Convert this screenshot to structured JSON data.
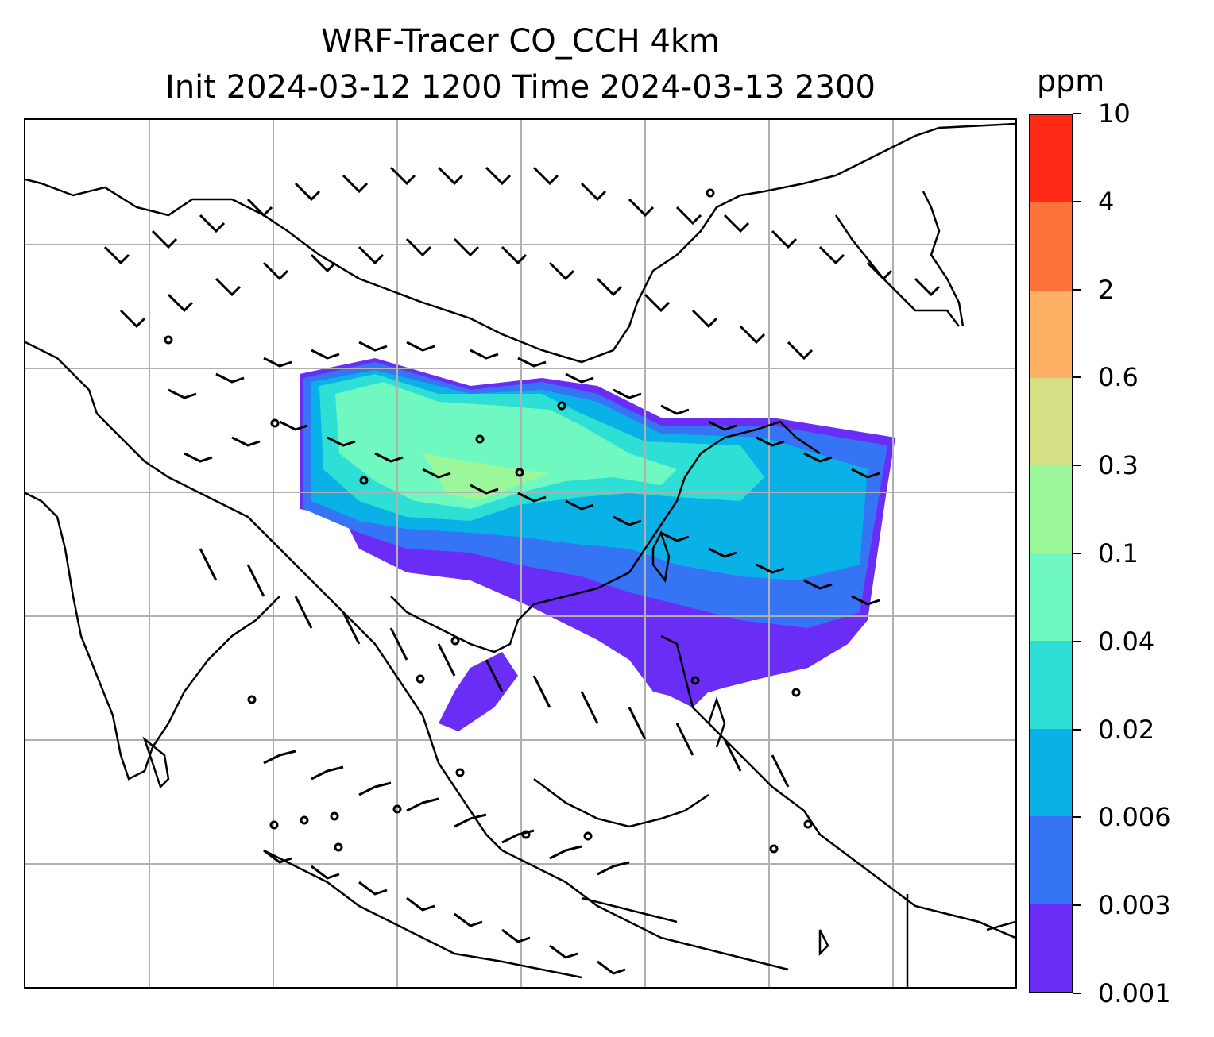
{
  "title": {
    "line1": "WRF-Tracer CO_CCH 4km",
    "line2": "Init 2024-03-12 1200 Time 2024-03-13 2300"
  },
  "colorbar": {
    "unit": "ppm",
    "levels": [
      "0.001",
      "0.003",
      "0.006",
      "0.02",
      "0.04",
      "0.1",
      "0.3",
      "0.6",
      "2",
      "4",
      "10"
    ],
    "colors": [
      "#6a2df5",
      "#3575f5",
      "#0ab1e7",
      "#2ddfd4",
      "#6ff8c0",
      "#9af79a",
      "#d4df86",
      "#fdaf63",
      "#ff7239",
      "#ff2a16"
    ]
  },
  "map": {
    "gridlines": true,
    "coastline_color": "#000000",
    "grid_color": "#b0b0b0",
    "wind_barbs": true
  }
}
